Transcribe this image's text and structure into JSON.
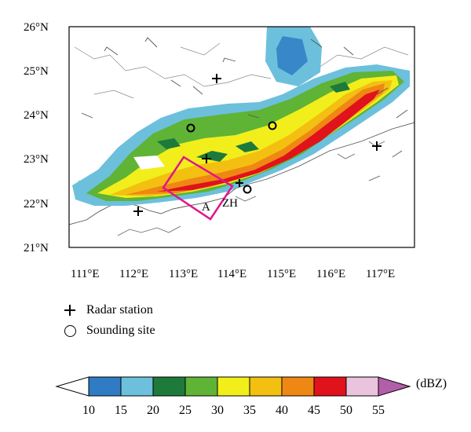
{
  "map": {
    "lat_labels": [
      "26°N",
      "25°N",
      "24°N",
      "23°N",
      "22°N",
      "21°N"
    ],
    "lon_labels": [
      "111°E",
      "112°E",
      "113°E",
      "114°E",
      "115°E",
      "116°E",
      "117°E"
    ],
    "box_label": "A",
    "site_label": "ZH",
    "box_color": "#e0158c",
    "extent": {
      "lon_min": 110.5,
      "lon_max": 117.6,
      "lat_min": 21.0,
      "lat_max": 26.0
    }
  },
  "legend": {
    "radar_label": "Radar station",
    "sounding_label": "Sounding site"
  },
  "colorbar": {
    "unit": "(dBZ)",
    "ticks": [
      "10",
      "15",
      "20",
      "25",
      "30",
      "35",
      "40",
      "45",
      "50",
      "55"
    ],
    "under_color": "#ffffff",
    "colors": [
      "#2f7cc4",
      "#6cc0dc",
      "#1d7a3b",
      "#5fb335",
      "#f2ee1c",
      "#f3c011",
      "#ef8714",
      "#e0121c",
      "#e9c4dc"
    ],
    "over_color": "#b35ea8"
  }
}
